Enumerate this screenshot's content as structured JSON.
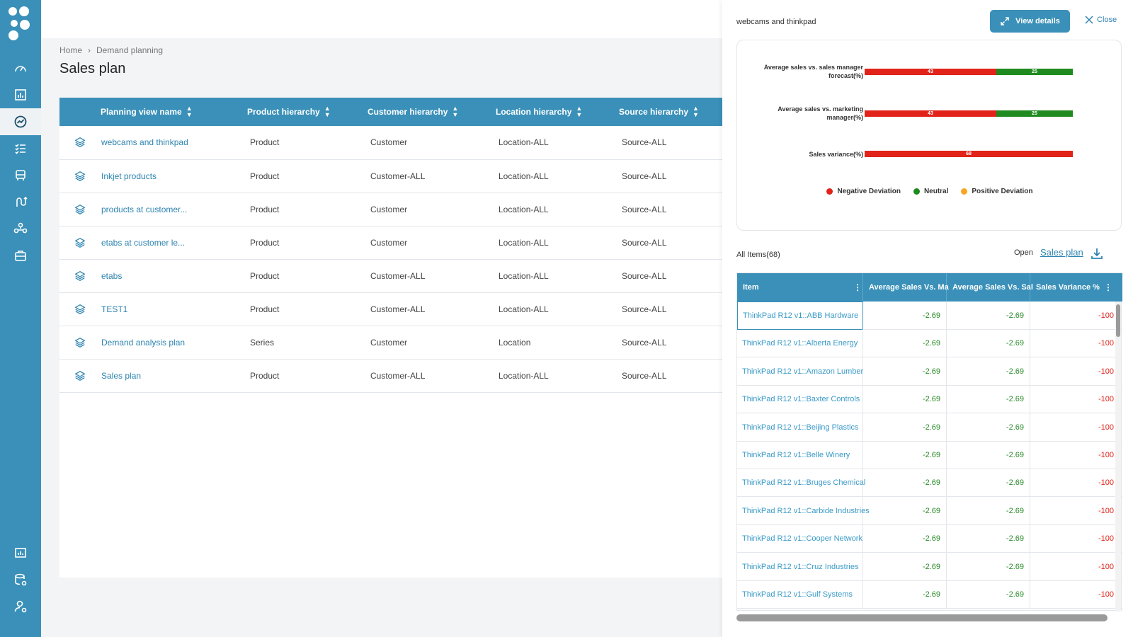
{
  "nav": {
    "items": [
      {
        "name": "nav-dashboard",
        "icon": "gauge-icon"
      },
      {
        "name": "nav-analytics",
        "icon": "bar-chart-icon"
      },
      {
        "name": "nav-planning",
        "icon": "trend-icon",
        "active": true
      },
      {
        "name": "nav-tasks",
        "icon": "checklist-icon"
      },
      {
        "name": "nav-shipments",
        "icon": "truck-icon"
      },
      {
        "name": "nav-routes",
        "icon": "route-icon"
      },
      {
        "name": "nav-network",
        "icon": "network-icon"
      },
      {
        "name": "nav-cases",
        "icon": "briefcase-icon"
      }
    ],
    "bottom": [
      {
        "name": "nav-reports",
        "icon": "report-icon"
      },
      {
        "name": "nav-data-settings",
        "icon": "database-gear-icon"
      },
      {
        "name": "nav-user-settings",
        "icon": "user-gear-icon"
      }
    ]
  },
  "breadcrumb": {
    "home": "Home",
    "current": "Demand planning"
  },
  "page_title": "Sales plan",
  "plans_table": {
    "headers": [
      "Planning view name",
      "Product hierarchy",
      "Customer hierarchy",
      "Location hierarchy",
      "Source hierarchy"
    ],
    "rows": [
      {
        "name": "webcams and thinkpad",
        "product": "Product",
        "customer": "Customer",
        "location": "Location-ALL",
        "source": "Source-ALL"
      },
      {
        "name": "Inkjet products",
        "product": "Product",
        "customer": "Customer-ALL",
        "location": "Location-ALL",
        "source": "Source-ALL"
      },
      {
        "name": "products at customer...",
        "product": "Product",
        "customer": "Customer",
        "location": "Location-ALL",
        "source": "Source-ALL"
      },
      {
        "name": "etabs at customer le...",
        "product": "Product",
        "customer": "Customer",
        "location": "Location-ALL",
        "source": "Source-ALL"
      },
      {
        "name": "etabs",
        "product": "Product",
        "customer": "Customer-ALL",
        "location": "Location-ALL",
        "source": "Source-ALL"
      },
      {
        "name": "TEST1",
        "product": "Product",
        "customer": "Customer-ALL",
        "location": "Location-ALL",
        "source": "Source-ALL"
      },
      {
        "name": "Demand analysis plan",
        "product": "Series",
        "customer": "Customer",
        "location": "Location",
        "source": "Source-ALL"
      },
      {
        "name": "Sales plan",
        "product": "Product",
        "customer": "Customer-ALL",
        "location": "Location-ALL",
        "source": "Source-ALL"
      }
    ]
  },
  "panel": {
    "title": "webcams and thinkpad",
    "view_details": "View details",
    "close": "Close",
    "all_items": "All Items(68)",
    "open_label": "Open",
    "open_link": "Sales plan"
  },
  "chart_data": {
    "type": "bar",
    "orientation": "horizontal-stacked",
    "categories": [
      "Average sales vs. sales manager forecast(%)",
      "Average sales vs. marketing manager(%)",
      "Sales variance(%)"
    ],
    "series": [
      {
        "name": "Negative Deviation",
        "color": "#e2231a",
        "values": [
          43,
          43,
          68
        ]
      },
      {
        "name": "Neutral",
        "color": "#1f8a1f",
        "values": [
          25,
          25,
          0
        ]
      },
      {
        "name": "Positive Deviation",
        "color": "#f5a623",
        "values": [
          0,
          0,
          0
        ]
      }
    ],
    "legend_position": "bottom"
  },
  "items_grid": {
    "headers": [
      "Item",
      "Average Sales Vs. Ma",
      "Average Sales Vs. Sal",
      "Sales Variance %"
    ],
    "rows": [
      {
        "item": "ThinkPad R12 v1::ABB Hardware",
        "a": "-2.69",
        "b": "-2.69",
        "c": "-100"
      },
      {
        "item": "ThinkPad R12 v1::Alberta Energy",
        "a": "-2.69",
        "b": "-2.69",
        "c": "-100"
      },
      {
        "item": "ThinkPad R12 v1::Amazon Lumber",
        "a": "-2.69",
        "b": "-2.69",
        "c": "-100"
      },
      {
        "item": "ThinkPad R12 v1::Baxter Controls",
        "a": "-2.69",
        "b": "-2.69",
        "c": "-100"
      },
      {
        "item": "ThinkPad R12 v1::Beijing Plastics",
        "a": "-2.69",
        "b": "-2.69",
        "c": "-100"
      },
      {
        "item": "ThinkPad R12 v1::Belle Winery",
        "a": "-2.69",
        "b": "-2.69",
        "c": "-100"
      },
      {
        "item": "ThinkPad R12 v1::Bruges Chemical",
        "a": "-2.69",
        "b": "-2.69",
        "c": "-100"
      },
      {
        "item": "ThinkPad R12 v1::Carbide Industries",
        "a": "-2.69",
        "b": "-2.69",
        "c": "-100"
      },
      {
        "item": "ThinkPad R12 v1::Cooper Network",
        "a": "-2.69",
        "b": "-2.69",
        "c": "-100"
      },
      {
        "item": "ThinkPad R12 v1::Cruz Industries",
        "a": "-2.69",
        "b": "-2.69",
        "c": "-100"
      },
      {
        "item": "ThinkPad R12 v1::Gulf Systems",
        "a": "-2.69",
        "b": "-2.69",
        "c": "-100"
      }
    ]
  },
  "colors": {
    "brand": "#3a90b8",
    "link": "#2d84b0",
    "negative": "#e2231a",
    "neutral": "#1f8a1f",
    "positive": "#f5a623"
  }
}
